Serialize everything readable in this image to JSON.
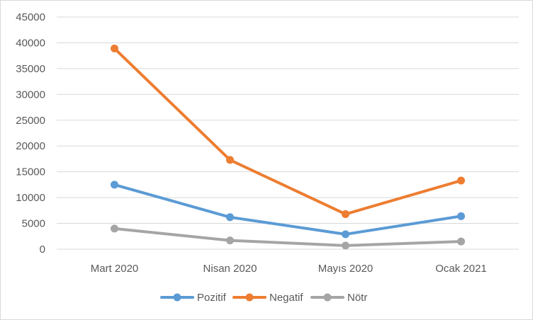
{
  "chart_data": {
    "type": "line",
    "title": "",
    "xlabel": "",
    "ylabel": "",
    "categories": [
      "Mart 2020",
      "Nisan 2020",
      "Mayıs 2020",
      "Ocak 2021"
    ],
    "ylim": [
      0,
      45000
    ],
    "yticks": [
      0,
      5000,
      10000,
      15000,
      20000,
      25000,
      30000,
      35000,
      40000,
      45000
    ],
    "grid": true,
    "legend_position": "bottom",
    "series": [
      {
        "name": "Pozitif",
        "color": "#5b9bd5",
        "values": [
          12500,
          6200,
          2900,
          6400
        ]
      },
      {
        "name": "Negatif",
        "color": "#ed7d31",
        "values": [
          38900,
          17300,
          6800,
          13300
        ]
      },
      {
        "name": "Nötr",
        "color": "#a5a5a5",
        "values": [
          4000,
          1700,
          700,
          1500
        ]
      }
    ]
  }
}
